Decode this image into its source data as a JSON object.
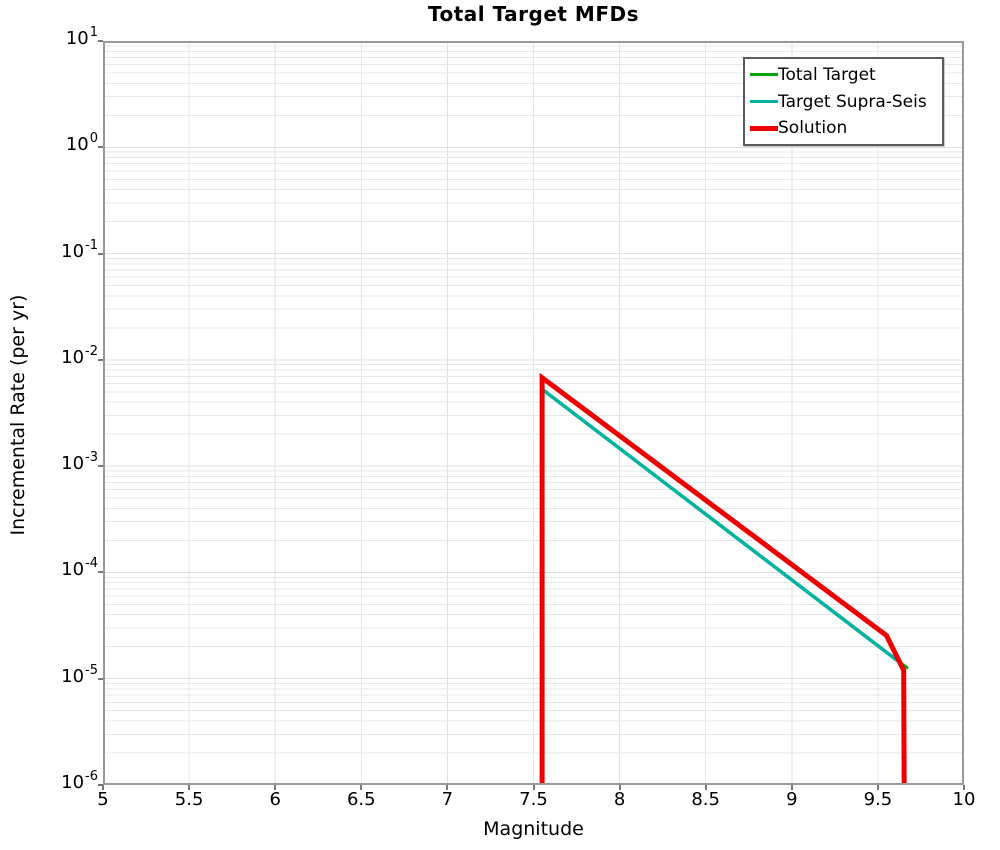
{
  "chart": {
    "title": "Total Target MFDs",
    "xlabel": "Magnitude",
    "ylabel": "Incremental Rate (per yr)"
  },
  "chart_data": {
    "type": "line",
    "title": "Total Target MFDs",
    "xlabel": "Magnitude",
    "ylabel": "Incremental Rate (per yr)",
    "grid": true,
    "legend_position": "upper-right",
    "x_axis": {
      "min": 5,
      "max": 10,
      "tick_labels": [
        "5",
        "5.5",
        "6",
        "6.5",
        "7",
        "7.5",
        "8",
        "8.5",
        "9",
        "9.5",
        "10"
      ],
      "ticks": [
        5,
        5.5,
        6,
        6.5,
        7,
        7.5,
        8,
        8.5,
        9,
        9.5,
        10
      ],
      "grid_step": 0.5
    },
    "y_axis": {
      "scale": "log",
      "min": 1e-06,
      "max": 10,
      "min_exp": -6,
      "max_exp": 1,
      "tick_exponents": [
        1,
        0,
        -1,
        -2,
        -3,
        -4,
        -5,
        -6
      ],
      "tick_base": "10"
    },
    "series": [
      {
        "name": "Total Target",
        "color": "#00a30a",
        "width": 3,
        "points": [
          [
            7.55,
            1e-07
          ],
          [
            7.55,
            0.0053
          ],
          [
            9.675,
            1.25e-05
          ]
        ]
      },
      {
        "name": "Target Supra-Seis",
        "color": "#00b2a2",
        "width": 3.5,
        "points": [
          [
            7.55,
            1e-07
          ],
          [
            7.55,
            0.0053
          ],
          [
            9.645,
            1.35e-05
          ]
        ]
      },
      {
        "name": "Solution",
        "color": "#ee0000",
        "width": 5,
        "points": [
          [
            7.55,
            1e-07
          ],
          [
            7.55,
            0.0068
          ],
          [
            9.55,
            2.55e-05
          ],
          [
            9.65,
            1.2e-05
          ],
          [
            9.655,
            1e-07
          ]
        ]
      }
    ]
  },
  "legend": {
    "border_color": "#5a5a5a"
  }
}
